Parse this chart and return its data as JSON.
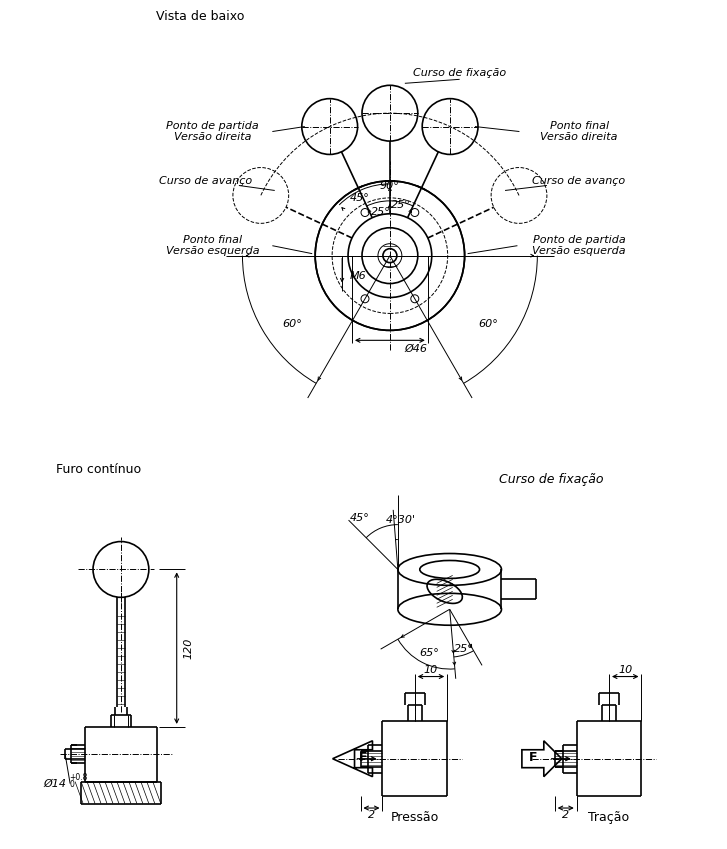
{
  "title": "Vista de baixo",
  "label_furo": "Furo contínuo",
  "label_curso_fixacao": "Curso de fixação",
  "label_curso_avanco_left": "Curso de avanço",
  "label_curso_avanco_right": "Curso de avanço",
  "label_ponto_partida_direita": "Ponto de partida\nVersão direita",
  "label_ponto_final_direita": "Ponto final\nVersão direita",
  "label_ponto_final_esquerda": "Ponto final\nVersão esquerda",
  "label_ponto_partida_esquerda": "Ponto de partida\nVersão esquerda",
  "label_pressao": "Pressão",
  "label_tracao": "Tração",
  "label_m6": "M6",
  "label_d46": "Ø46",
  "label_d14": "Ø14",
  "label_120": "120",
  "angle_25_left": "25°",
  "angle_25_right": "25°",
  "angle_45": "45°",
  "angle_90": "90°",
  "angle_60_left": "60°",
  "angle_60_right": "60°",
  "angle_45_side": "45°",
  "angle_430": "4°30'",
  "angle_65": "65°",
  "angle_25_side": "25°",
  "dim_10": "10",
  "dim_2": "2",
  "label_F": "F",
  "bg_color": "#ffffff",
  "line_color": "#000000",
  "font_size_main": 9,
  "font_size_label": 8,
  "font_size_dim": 8
}
